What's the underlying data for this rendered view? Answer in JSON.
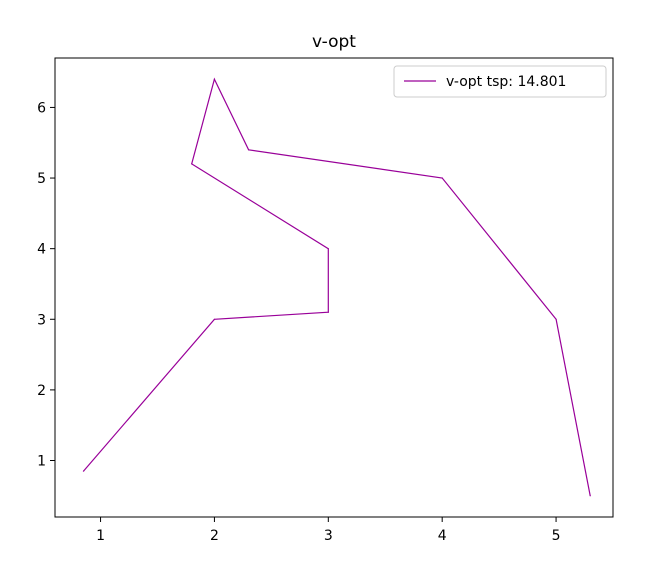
{
  "chart_data": {
    "type": "line",
    "title": "v-opt",
    "xlabel": "",
    "ylabel": "",
    "xlim": [
      0.6,
      5.5
    ],
    "ylim": [
      0.2,
      6.7
    ],
    "xticks": [
      1,
      2,
      3,
      4,
      5
    ],
    "yticks": [
      1,
      2,
      3,
      4,
      5,
      6
    ],
    "grid": false,
    "legend_position": "top-right",
    "series": [
      {
        "name": "v-opt tsp: 14.801",
        "color": "#990099",
        "x": [
          0.85,
          2.0,
          3.0,
          3.0,
          1.8,
          2.0,
          2.3,
          4.0,
          5.0,
          5.3
        ],
        "y": [
          0.85,
          3.0,
          3.1,
          4.0,
          5.2,
          6.4,
          5.4,
          5.0,
          3.0,
          0.5
        ]
      }
    ]
  }
}
